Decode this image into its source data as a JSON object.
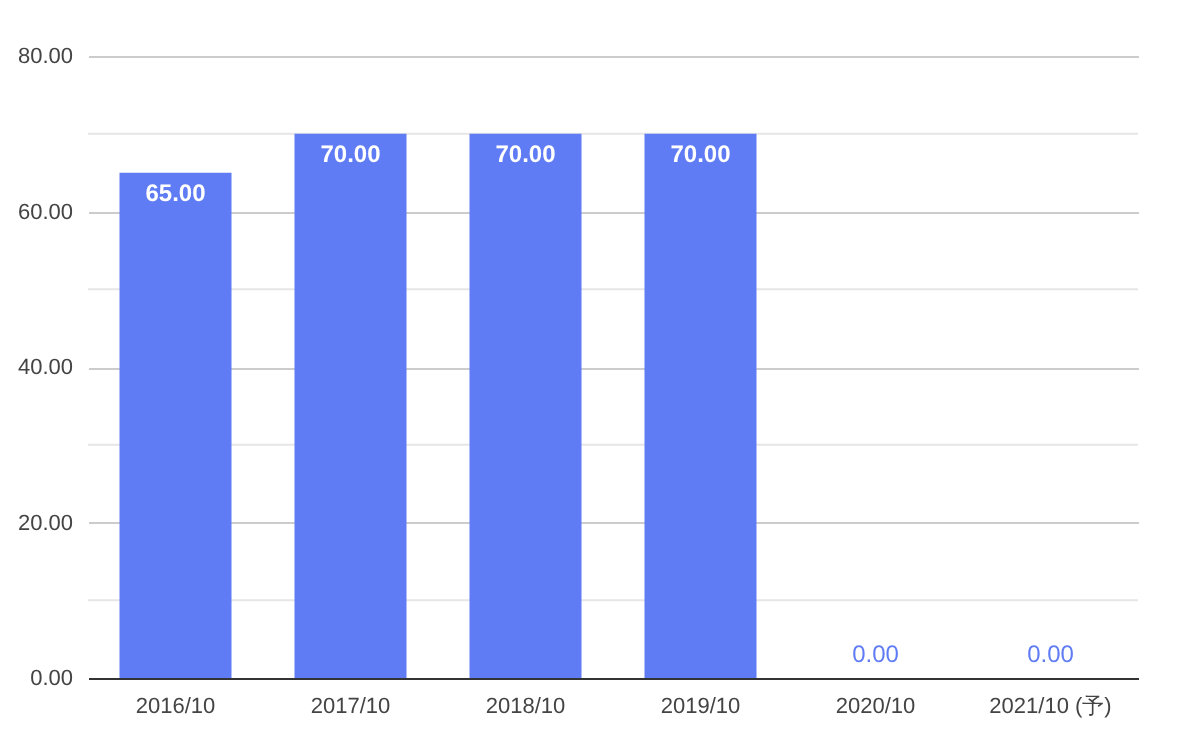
{
  "chart_data": {
    "type": "bar",
    "categories": [
      "2016/10",
      "2017/10",
      "2018/10",
      "2019/10",
      "2020/10",
      "2021/10 (予)"
    ],
    "values": [
      65,
      70,
      70,
      70,
      0,
      0
    ],
    "color": "#5f7cf4",
    "value_labels": [
      "65.00",
      "70.00",
      "70.00",
      "70.00",
      "0.00",
      "0.00"
    ],
    "ylim": [
      0,
      80
    ],
    "yticks": [
      {
        "value": 0,
        "label": "0.00"
      },
      {
        "value": 10,
        "label": null
      },
      {
        "value": 20,
        "label": "20.00"
      },
      {
        "value": 30,
        "label": null
      },
      {
        "value": 40,
        "label": "40.00"
      },
      {
        "value": 50,
        "label": null
      },
      {
        "value": 60,
        "label": "60.00"
      },
      {
        "value": 70,
        "label": null
      },
      {
        "value": 80,
        "label": "80.00"
      }
    ],
    "grid": true
  }
}
